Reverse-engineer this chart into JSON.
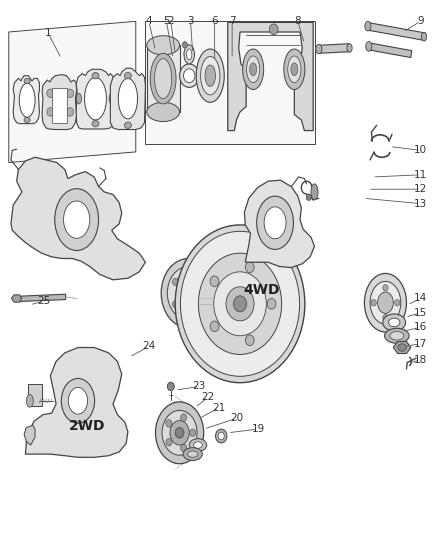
{
  "background_color": "#ffffff",
  "fig_width": 4.38,
  "fig_height": 5.33,
  "dpi": 100,
  "line_color": "#444444",
  "label_fontsize": 7.5,
  "text_color": "#333333",
  "label_positions": {
    "1": [
      0.11,
      0.938,
      0.14,
      0.89
    ],
    "2": [
      0.39,
      0.96,
      0.4,
      0.9
    ],
    "3": [
      0.435,
      0.96,
      0.44,
      0.9
    ],
    "4": [
      0.34,
      0.96,
      0.355,
      0.905
    ],
    "5": [
      0.38,
      0.96,
      0.395,
      0.89
    ],
    "6": [
      0.49,
      0.96,
      0.49,
      0.885
    ],
    "7": [
      0.53,
      0.96,
      0.53,
      0.89
    ],
    "8": [
      0.68,
      0.96,
      0.695,
      0.918
    ],
    "9": [
      0.96,
      0.96,
      0.92,
      0.94
    ],
    "10": [
      0.96,
      0.718,
      0.89,
      0.725
    ],
    "11": [
      0.96,
      0.672,
      0.85,
      0.668
    ],
    "12": [
      0.96,
      0.645,
      0.84,
      0.645
    ],
    "13": [
      0.96,
      0.618,
      0.83,
      0.628
    ],
    "14": [
      0.96,
      0.44,
      0.93,
      0.428
    ],
    "15": [
      0.96,
      0.413,
      0.925,
      0.405
    ],
    "16": [
      0.96,
      0.386,
      0.918,
      0.378
    ],
    "17": [
      0.96,
      0.355,
      0.92,
      0.35
    ],
    "18": [
      0.96,
      0.325,
      0.93,
      0.318
    ],
    "19": [
      0.59,
      0.195,
      0.52,
      0.188
    ],
    "20": [
      0.54,
      0.215,
      0.465,
      0.195
    ],
    "21": [
      0.5,
      0.235,
      0.455,
      0.215
    ],
    "22": [
      0.475,
      0.255,
      0.445,
      0.235
    ],
    "23": [
      0.455,
      0.275,
      0.4,
      0.268
    ],
    "24": [
      0.34,
      0.35,
      0.295,
      0.33
    ],
    "25": [
      0.1,
      0.435,
      0.068,
      0.428
    ]
  },
  "label4wd": [
    0.555,
    0.455
  ],
  "label2wd": [
    0.2,
    0.2
  ]
}
